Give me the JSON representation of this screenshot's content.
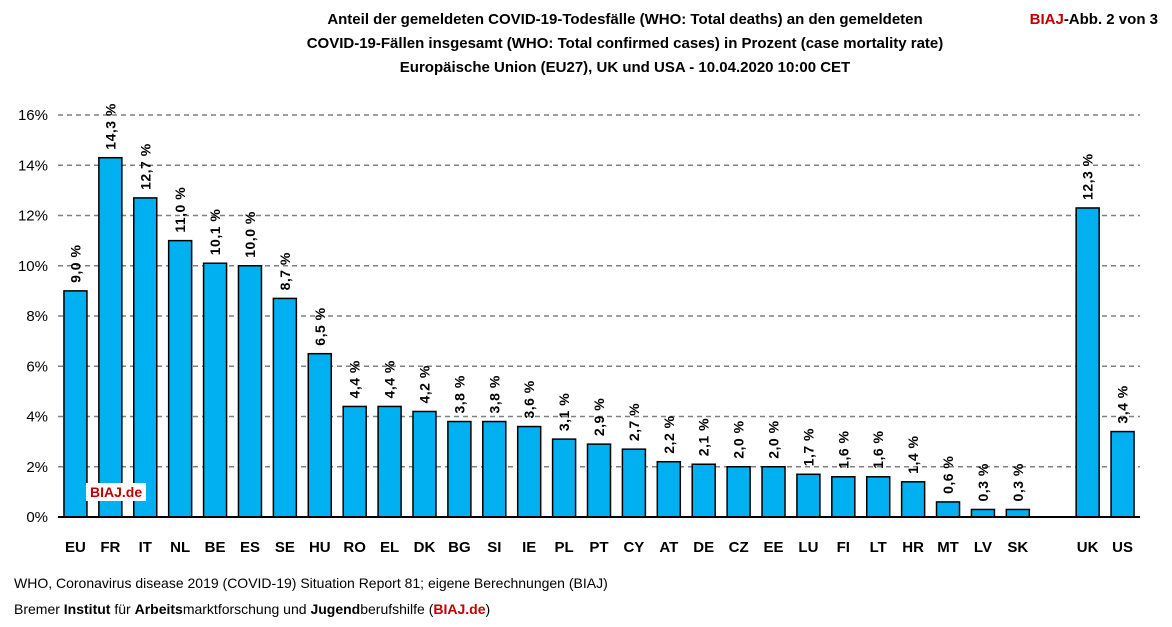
{
  "header": {
    "title_line1": "Anteil der gemeldeten COVID-19-Todesfälle (WHO: Total deaths) an den gemeldeten",
    "title_line2": "COVID-19-Fällen insgesamt (WHO: Total confirmed cases) in Prozent (case mortality rate)",
    "title_line3": "Europäische Union (EU27), UK und USA - 10.04.2020 10:00 CET",
    "tag_brand": "BIAJ",
    "tag_rest": "-Abb. 2 von 3"
  },
  "watermark": "BIAJ.de",
  "footer": {
    "source": "WHO, Coronavirus disease 2019 (COVID-19) Situation Report 81; eigene Berechnungen (BIAJ)",
    "p1": "Bremer ",
    "b1": "Institut",
    "p2": " für ",
    "b2": "Arbeits",
    "p3": "marktforschung und ",
    "b3": "Jugend",
    "p4": "berufshilfe (",
    "link": "BIAJ.de",
    "p5": ")"
  },
  "colors": {
    "bar": "#00b0f0",
    "brand": "#c00000",
    "grid": "#808080"
  },
  "chart_data": {
    "type": "bar",
    "categories": [
      "EU",
      "FR",
      "IT",
      "NL",
      "BE",
      "ES",
      "SE",
      "HU",
      "RO",
      "EL",
      "DK",
      "BG",
      "SI",
      "IE",
      "PL",
      "PT",
      "CY",
      "AT",
      "DE",
      "CZ",
      "EE",
      "LU",
      "FI",
      "LT",
      "HR",
      "MT",
      "LV",
      "SK",
      "",
      "UK",
      "US"
    ],
    "values": [
      9.0,
      14.3,
      12.7,
      11.0,
      10.1,
      10.0,
      8.7,
      6.5,
      4.4,
      4.4,
      4.2,
      3.8,
      3.8,
      3.6,
      3.1,
      2.9,
      2.7,
      2.2,
      2.1,
      2.0,
      2.0,
      1.7,
      1.6,
      1.6,
      1.4,
      0.6,
      0.3,
      0.3,
      null,
      12.3,
      3.4
    ],
    "data_labels": [
      "9,0 %",
      "14,3 %",
      "12,7 %",
      "11,0 %",
      "10,1 %",
      "10,0 %",
      "8,7 %",
      "6,5 %",
      "4,4 %",
      "4,4 %",
      "4,2 %",
      "3,8 %",
      "3,8 %",
      "3,6 %",
      "3,1 %",
      "2,9 %",
      "2,7 %",
      "2,2 %",
      "2,1 %",
      "2,0 %",
      "2,0 %",
      "1,7 %",
      "1,6 %",
      "1,6 %",
      "1,4 %",
      "0,6 %",
      "0,3 %",
      "0,3 %",
      "",
      "12,3 %",
      "3,4 %"
    ],
    "y_ticks": [
      "0%",
      "2%",
      "4%",
      "6%",
      "8%",
      "10%",
      "12%",
      "14%",
      "16%"
    ],
    "ylim": [
      0,
      16
    ],
    "grid": true,
    "legend": false
  }
}
